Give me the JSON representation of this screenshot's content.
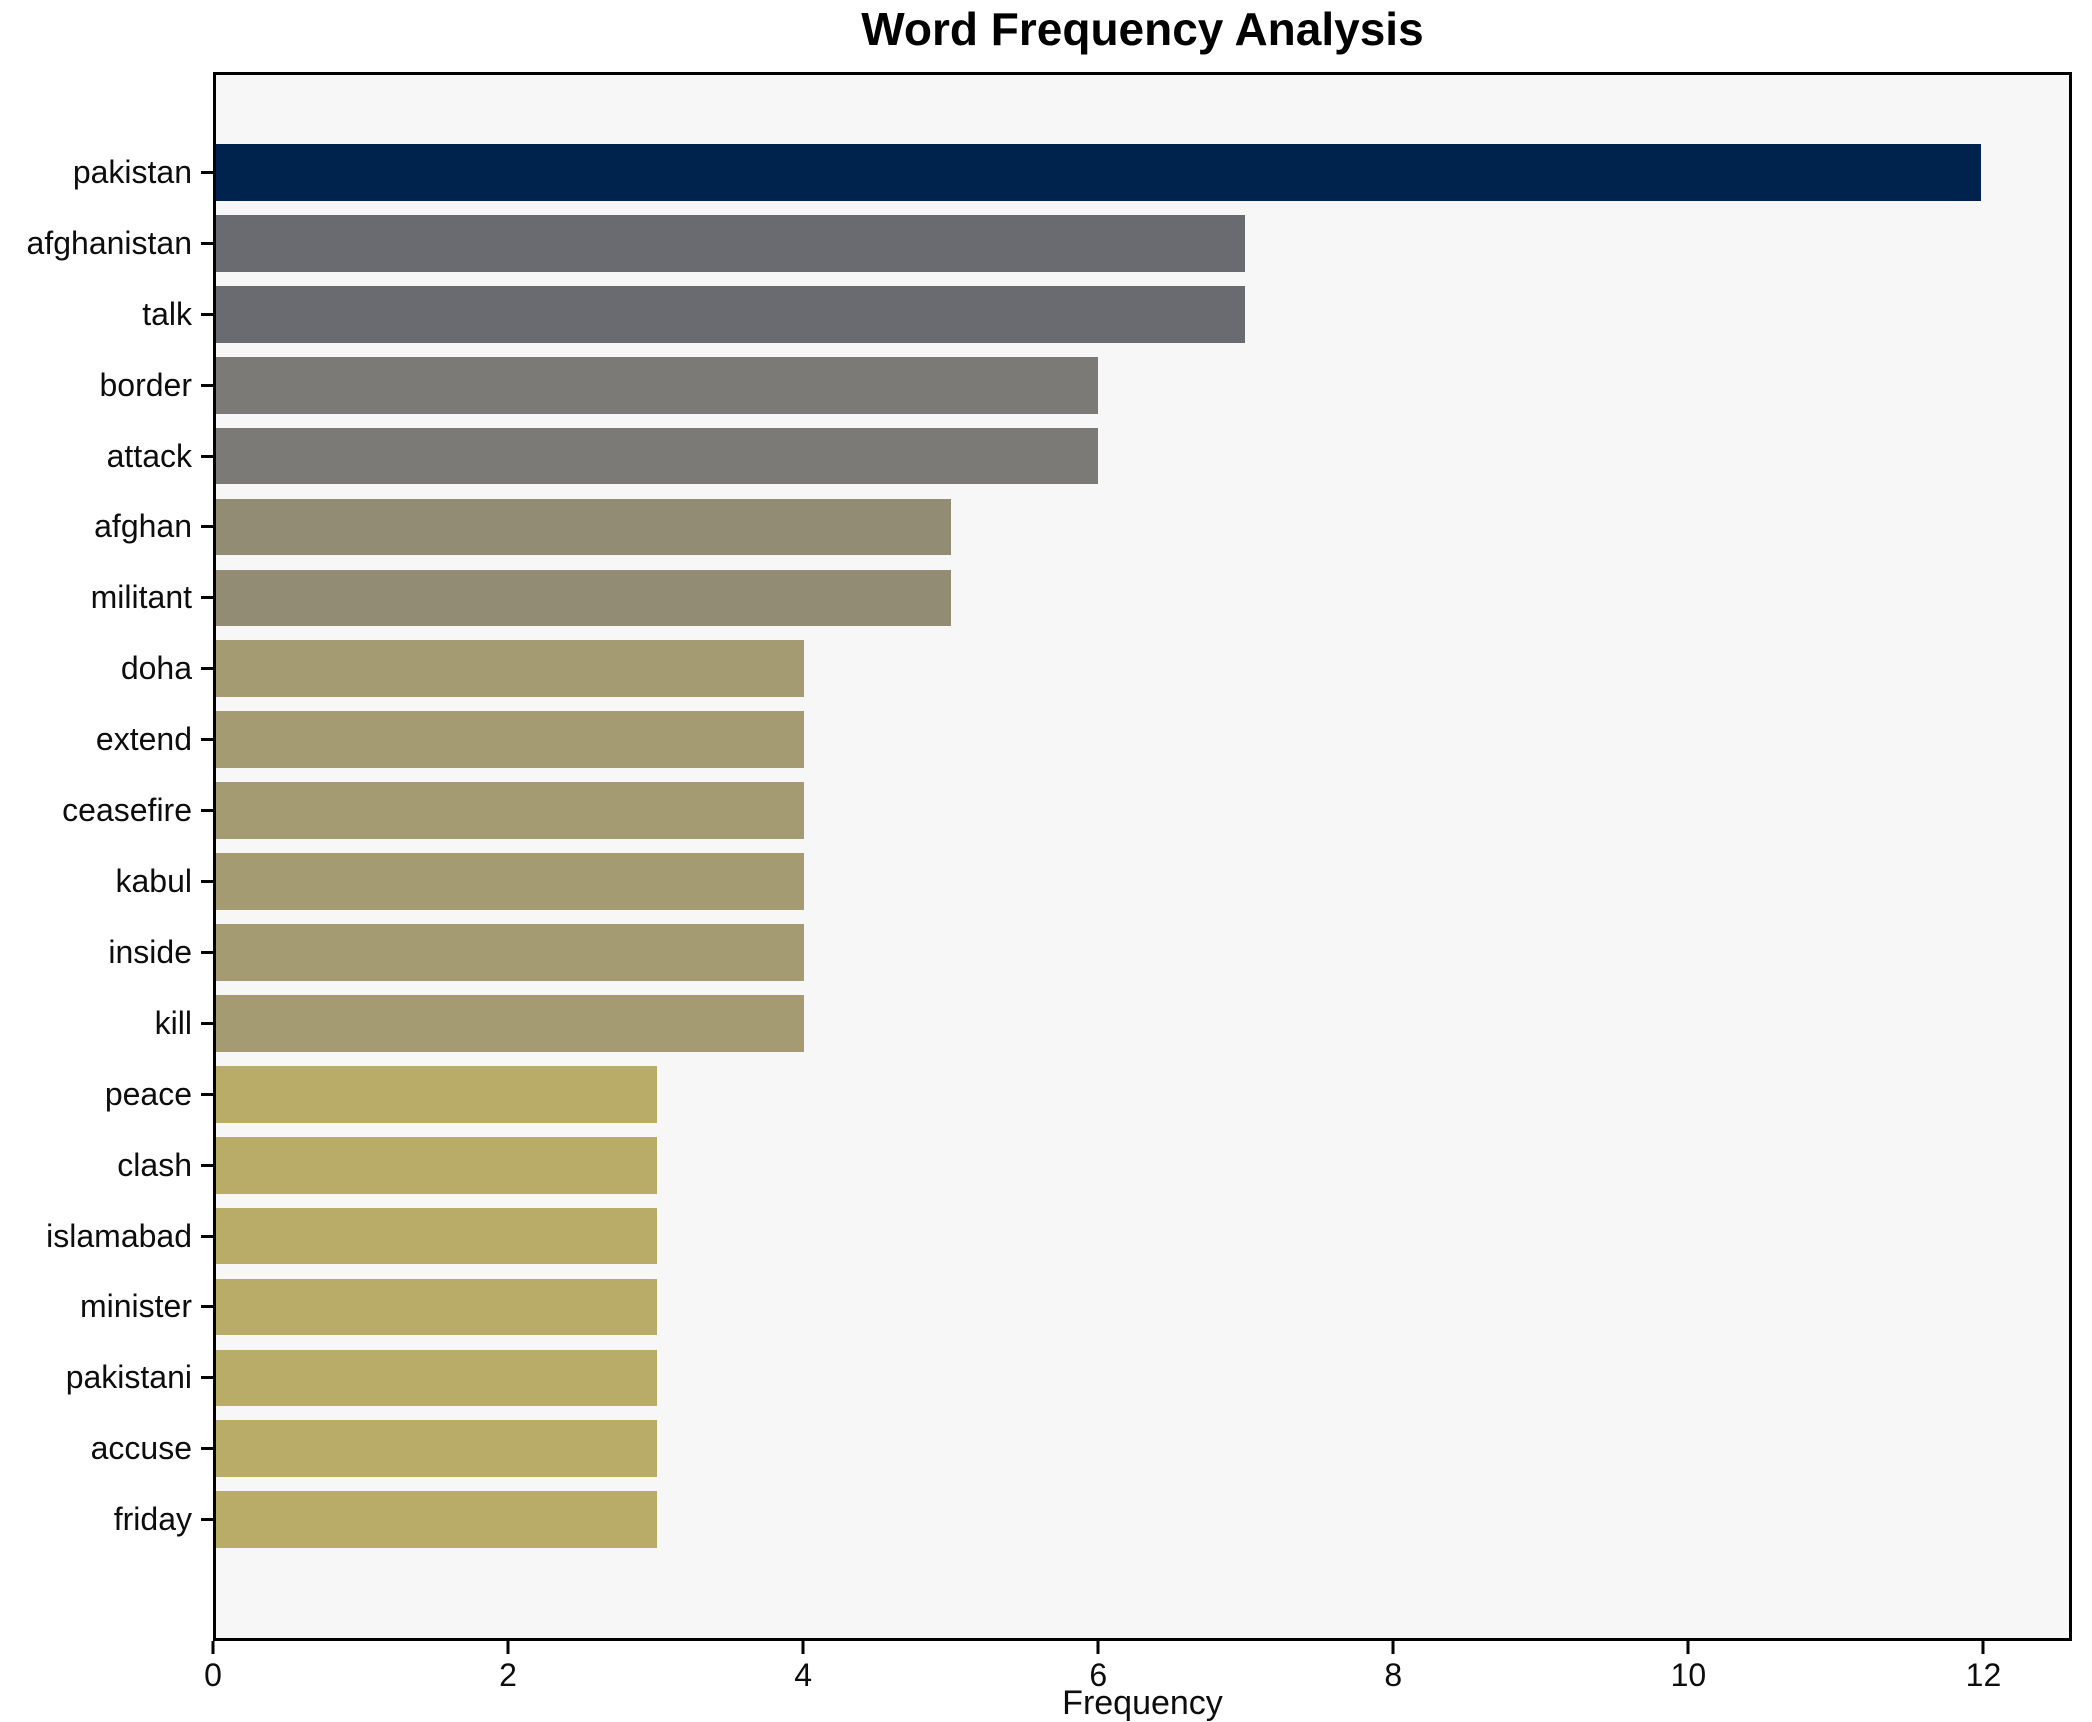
{
  "chart_data": {
    "type": "bar",
    "orientation": "horizontal",
    "title": "Word Frequency Analysis",
    "xlabel": "Frequency",
    "ylabel": "",
    "grid": false,
    "legend": false,
    "xlim": [
      0,
      12.6
    ],
    "xticks": [
      0,
      2,
      4,
      6,
      8,
      10,
      12
    ],
    "categories": [
      "pakistan",
      "afghanistan",
      "talk",
      "border",
      "attack",
      "afghan",
      "militant",
      "doha",
      "extend",
      "ceasefire",
      "kabul",
      "inside",
      "kill",
      "peace",
      "clash",
      "islamabad",
      "minister",
      "pakistani",
      "accuse",
      "friday"
    ],
    "values": [
      12,
      7,
      7,
      6,
      6,
      5,
      5,
      4,
      4,
      4,
      4,
      4,
      4,
      3,
      3,
      3,
      3,
      3,
      3,
      3
    ],
    "bar_colors": [
      "#00234d",
      "#6a6b71",
      "#6a6b71",
      "#7b7a76",
      "#7b7a76",
      "#938c75",
      "#938c75",
      "#a49b72",
      "#a49b72",
      "#a49b72",
      "#a49b72",
      "#a49b72",
      "#a49b72",
      "#b9ab68",
      "#b9ab68",
      "#b9ab68",
      "#b9ab68",
      "#b9ab68",
      "#b9ab68",
      "#b9ab68"
    ]
  },
  "colors": {
    "figure_background": "#ffffff",
    "plot_background": "#f7f7f8",
    "axis": "#000000",
    "text": "#0d0d0d"
  }
}
